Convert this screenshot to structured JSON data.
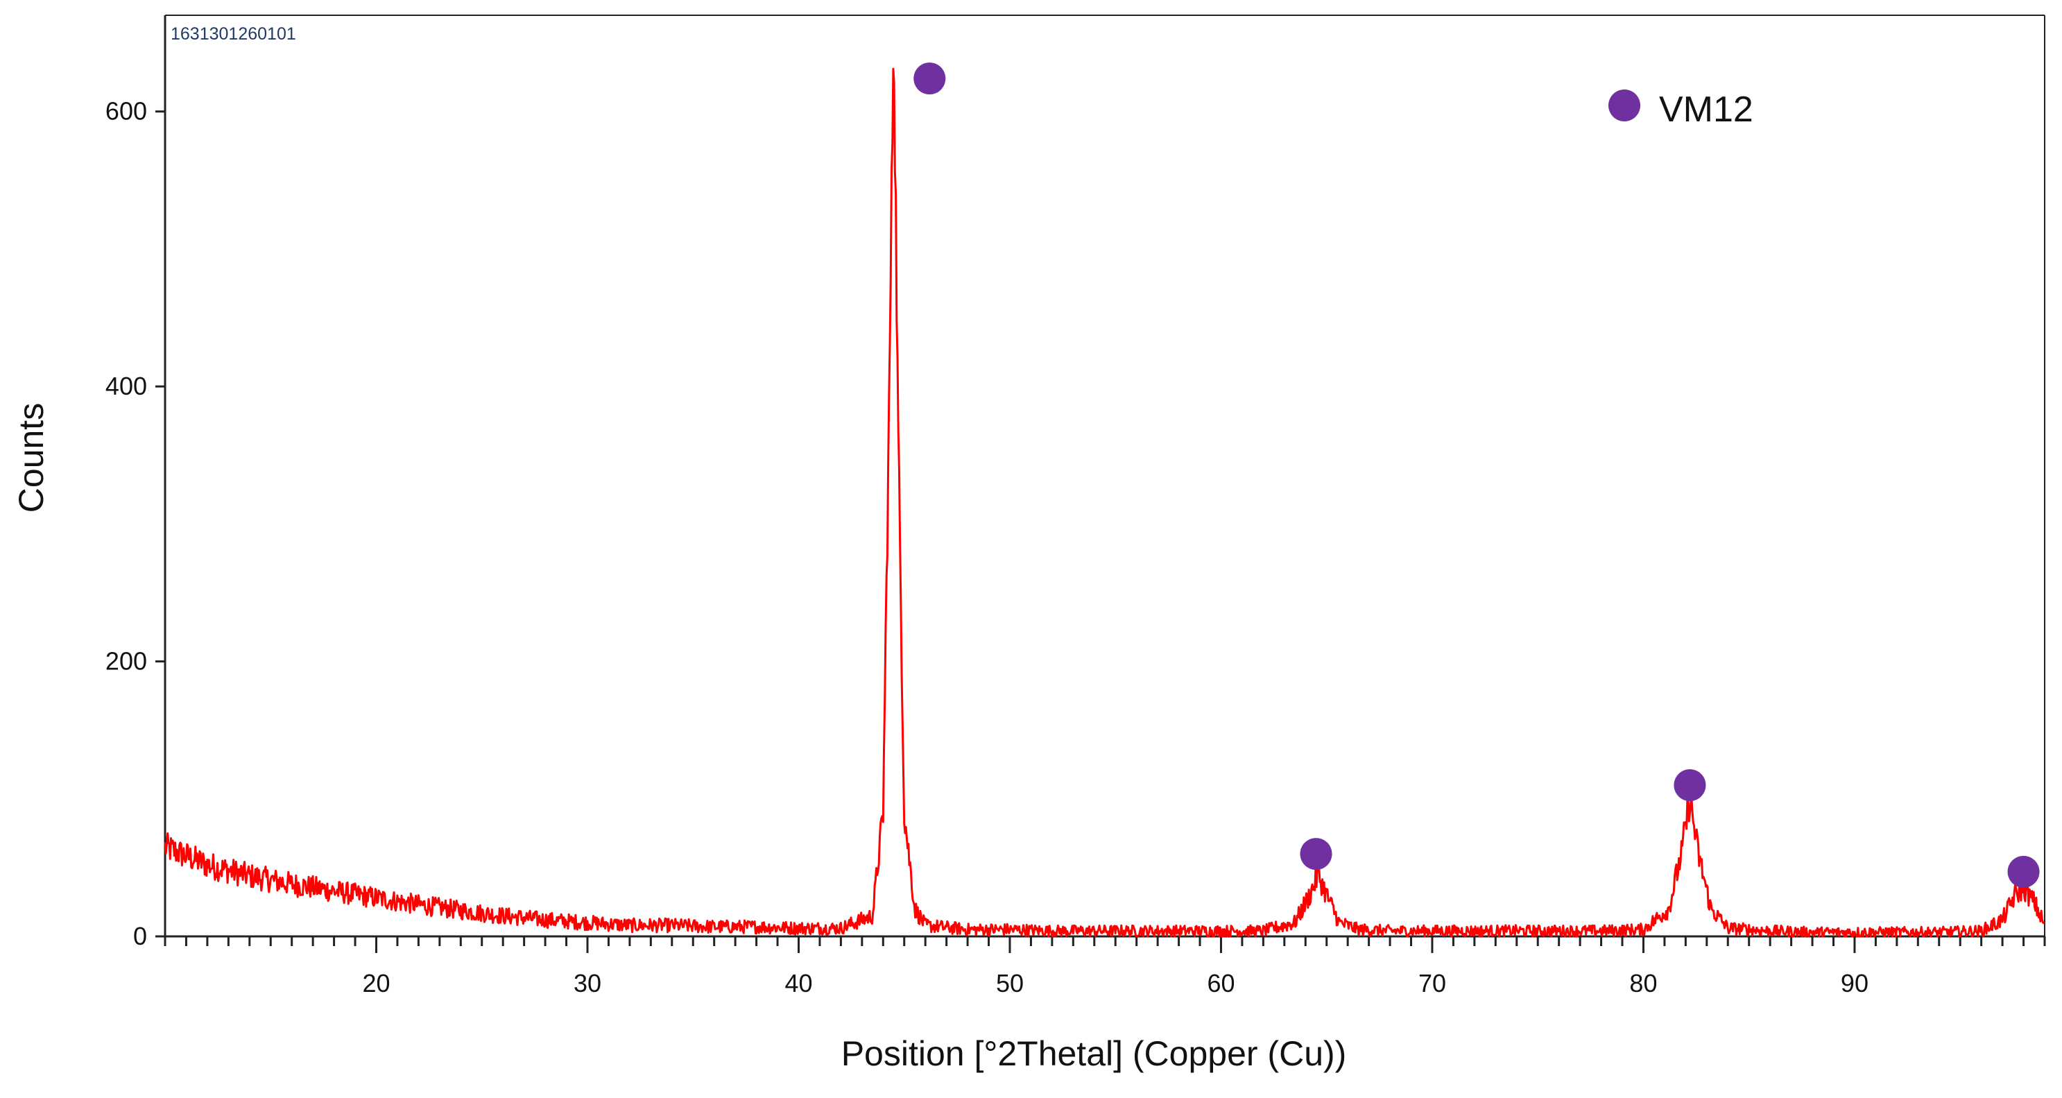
{
  "chart_data": {
    "type": "line",
    "sample_id": "1631301260101",
    "xlabel": "Position [°2Thetal] (Copper (Cu))",
    "ylabel": "Counts",
    "xlim": [
      10,
      99
    ],
    "ylim": [
      0,
      670
    ],
    "x_ticks": [
      20,
      30,
      40,
      50,
      60,
      70,
      80,
      90
    ],
    "y_ticks": [
      0,
      200,
      400,
      600
    ],
    "grid": false,
    "legend_position": "top-right",
    "colors": {
      "line": "#ff0000",
      "marker": "#7030a0",
      "axis": "#222222",
      "sample_id": "#1f3a68"
    },
    "series": [
      {
        "name": "",
        "x": [
          10,
          12,
          14,
          16,
          18,
          20,
          22,
          24,
          26,
          28,
          30,
          32,
          34,
          36,
          38,
          40,
          42,
          43.5,
          44,
          44.3,
          44.5,
          44.7,
          45,
          45.5,
          46,
          48,
          50,
          52,
          54,
          56,
          58,
          60,
          62,
          63.5,
          64.2,
          64.6,
          65.0,
          65.6,
          66.5,
          68,
          70,
          72,
          74,
          76,
          78,
          80,
          81.2,
          81.8,
          82.2,
          82.6,
          83.2,
          84,
          86,
          88,
          90,
          92,
          94,
          96,
          97,
          97.6,
          98,
          98.5,
          99
        ],
        "y": [
          65,
          52,
          44,
          38,
          33,
          28,
          23,
          19,
          15,
          12,
          10,
          8,
          8,
          7,
          7,
          6,
          6,
          15,
          90,
          400,
          670,
          380,
          90,
          20,
          8,
          5,
          5,
          4,
          4,
          4,
          4,
          4,
          4,
          10,
          30,
          45,
          30,
          10,
          5,
          4,
          4,
          4,
          4,
          4,
          4,
          5,
          20,
          60,
          100,
          60,
          20,
          6,
          4,
          3,
          3,
          3,
          3,
          4,
          12,
          30,
          35,
          25,
          8
        ]
      }
    ],
    "markers": [
      {
        "x": 46.2,
        "y": 624
      },
      {
        "x": 64.5,
        "y": 60
      },
      {
        "x": 82.2,
        "y": 110
      },
      {
        "x": 98.0,
        "y": 47
      }
    ],
    "legend": [
      {
        "label": "VM12",
        "symbol": "filled-circle"
      }
    ]
  }
}
